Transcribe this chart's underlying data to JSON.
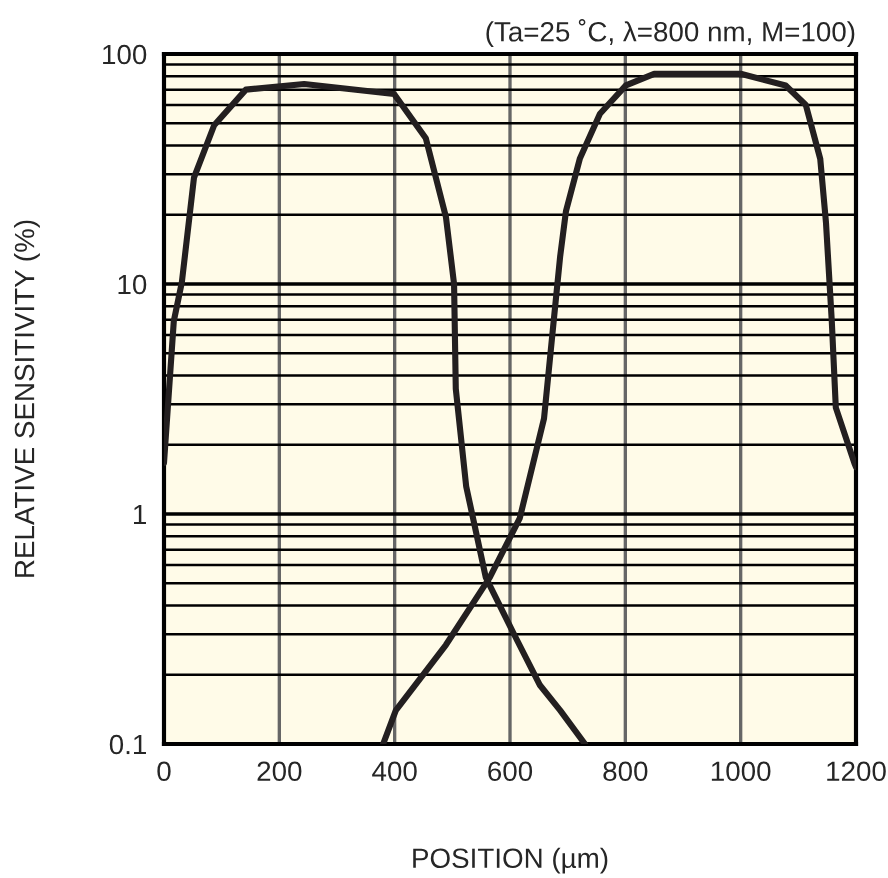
{
  "chart_data": {
    "type": "line",
    "xlabel": "POSITION (µm)",
    "ylabel": "RELATIVE SENSITIVITY (%)",
    "annotations": [
      "(Ta=25 ˚C, λ=800 nm, M=100)"
    ],
    "log": "y",
    "grid": true,
    "marker": "none",
    "line_style": "solid",
    "xlim": [
      0,
      1200
    ],
    "xticks": [
      0,
      200,
      400,
      600,
      800,
      1000,
      1200
    ],
    "ylim": [
      0.1,
      100
    ],
    "yticks": [
      0.1,
      1,
      10,
      100
    ],
    "series": [
      {
        "color": "#231f20",
        "x": [
          0,
          17,
          31,
          52,
          87,
          142,
          243,
          399,
          454,
          489,
          503,
          506,
          524,
          558,
          607,
          652,
          687,
          730
        ],
        "values": [
          1.67,
          6.9,
          10.2,
          29,
          49,
          70,
          74,
          67,
          43,
          19.5,
          10,
          3.5,
          1.32,
          0.53,
          0.3,
          0.18,
          0.14,
          0.1
        ]
      },
      {
        "color": "#231f20",
        "x": [
          380,
          402,
          489,
          565,
          617,
          659,
          676,
          687,
          697,
          721,
          756,
          801,
          850,
          1000,
          1078,
          1113,
          1138,
          1148,
          1158,
          1165,
          1197,
          1200
        ],
        "values": [
          0.1,
          0.14,
          0.27,
          0.53,
          0.96,
          2.6,
          7,
          13.2,
          20.7,
          35,
          55,
          73,
          82,
          82,
          73,
          60,
          35,
          18.4,
          6.9,
          2.9,
          1.67,
          1.6
        ]
      }
    ]
  }
}
